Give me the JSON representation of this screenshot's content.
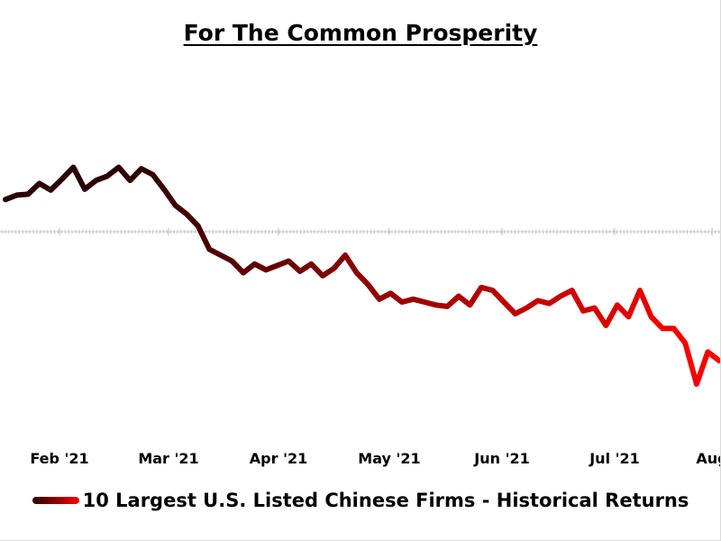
{
  "chart_data": {
    "type": "line",
    "title": "For The Common Prosperity",
    "xlabel": "",
    "ylabel": "",
    "grid": false,
    "legend_position": "bottom",
    "colors": {
      "start": "#2a0000",
      "mid": "#8b0000",
      "end": "#ff0000"
    },
    "x_ticks": [
      "Feb '21",
      "Mar '21",
      "Apr '21",
      "May '21",
      "Jun '21",
      "Jul '21",
      "Aug"
    ],
    "series": [
      {
        "name": "10 Largest U.S. Listed Chinese Firms - Historical Returns",
        "x": [
          0,
          3,
          6,
          9,
          12,
          15,
          18,
          21,
          24,
          27,
          30,
          33,
          36,
          39,
          42,
          45,
          48,
          51,
          54,
          57,
          60,
          63,
          66,
          69,
          72,
          75,
          78,
          81,
          84,
          87,
          90,
          93,
          96,
          99,
          102,
          105,
          108,
          111,
          114,
          117,
          120,
          123,
          126,
          129,
          132,
          135,
          138,
          141,
          144,
          147,
          150,
          153,
          156,
          159,
          162,
          165,
          168,
          171,
          174,
          177,
          180,
          183,
          186,
          189
        ],
        "values": [
          11.0,
          12.5,
          12.8,
          16.5,
          14.2,
          18.0,
          22.0,
          14.5,
          17.5,
          19.0,
          22.0,
          17.5,
          21.5,
          19.5,
          14.5,
          9.0,
          6.0,
          2.0,
          -6.0,
          -8.0,
          -10.0,
          -14.0,
          -11.0,
          -13.0,
          -11.5,
          -10.0,
          -13.5,
          -11.0,
          -15.0,
          -12.5,
          -8.0,
          -14.0,
          -18.0,
          -23.0,
          -21.0,
          -24.0,
          -23.0,
          -24.0,
          -25.0,
          -25.5,
          -22.0,
          -25.0,
          -19.0,
          -20.0,
          -24.0,
          -28.0,
          -26.0,
          -23.5,
          -24.5,
          -22.0,
          -20.0,
          -27.0,
          -26.0,
          -32.0,
          -25.0,
          -29.0,
          -20.0,
          -29.0,
          -33.0,
          -33.0,
          -38.0,
          -52.0,
          -41.0,
          -44.0
        ]
      }
    ]
  },
  "legend": {
    "label": "10 Largest U.S. Listed Chinese Firms - Historical Returns"
  }
}
